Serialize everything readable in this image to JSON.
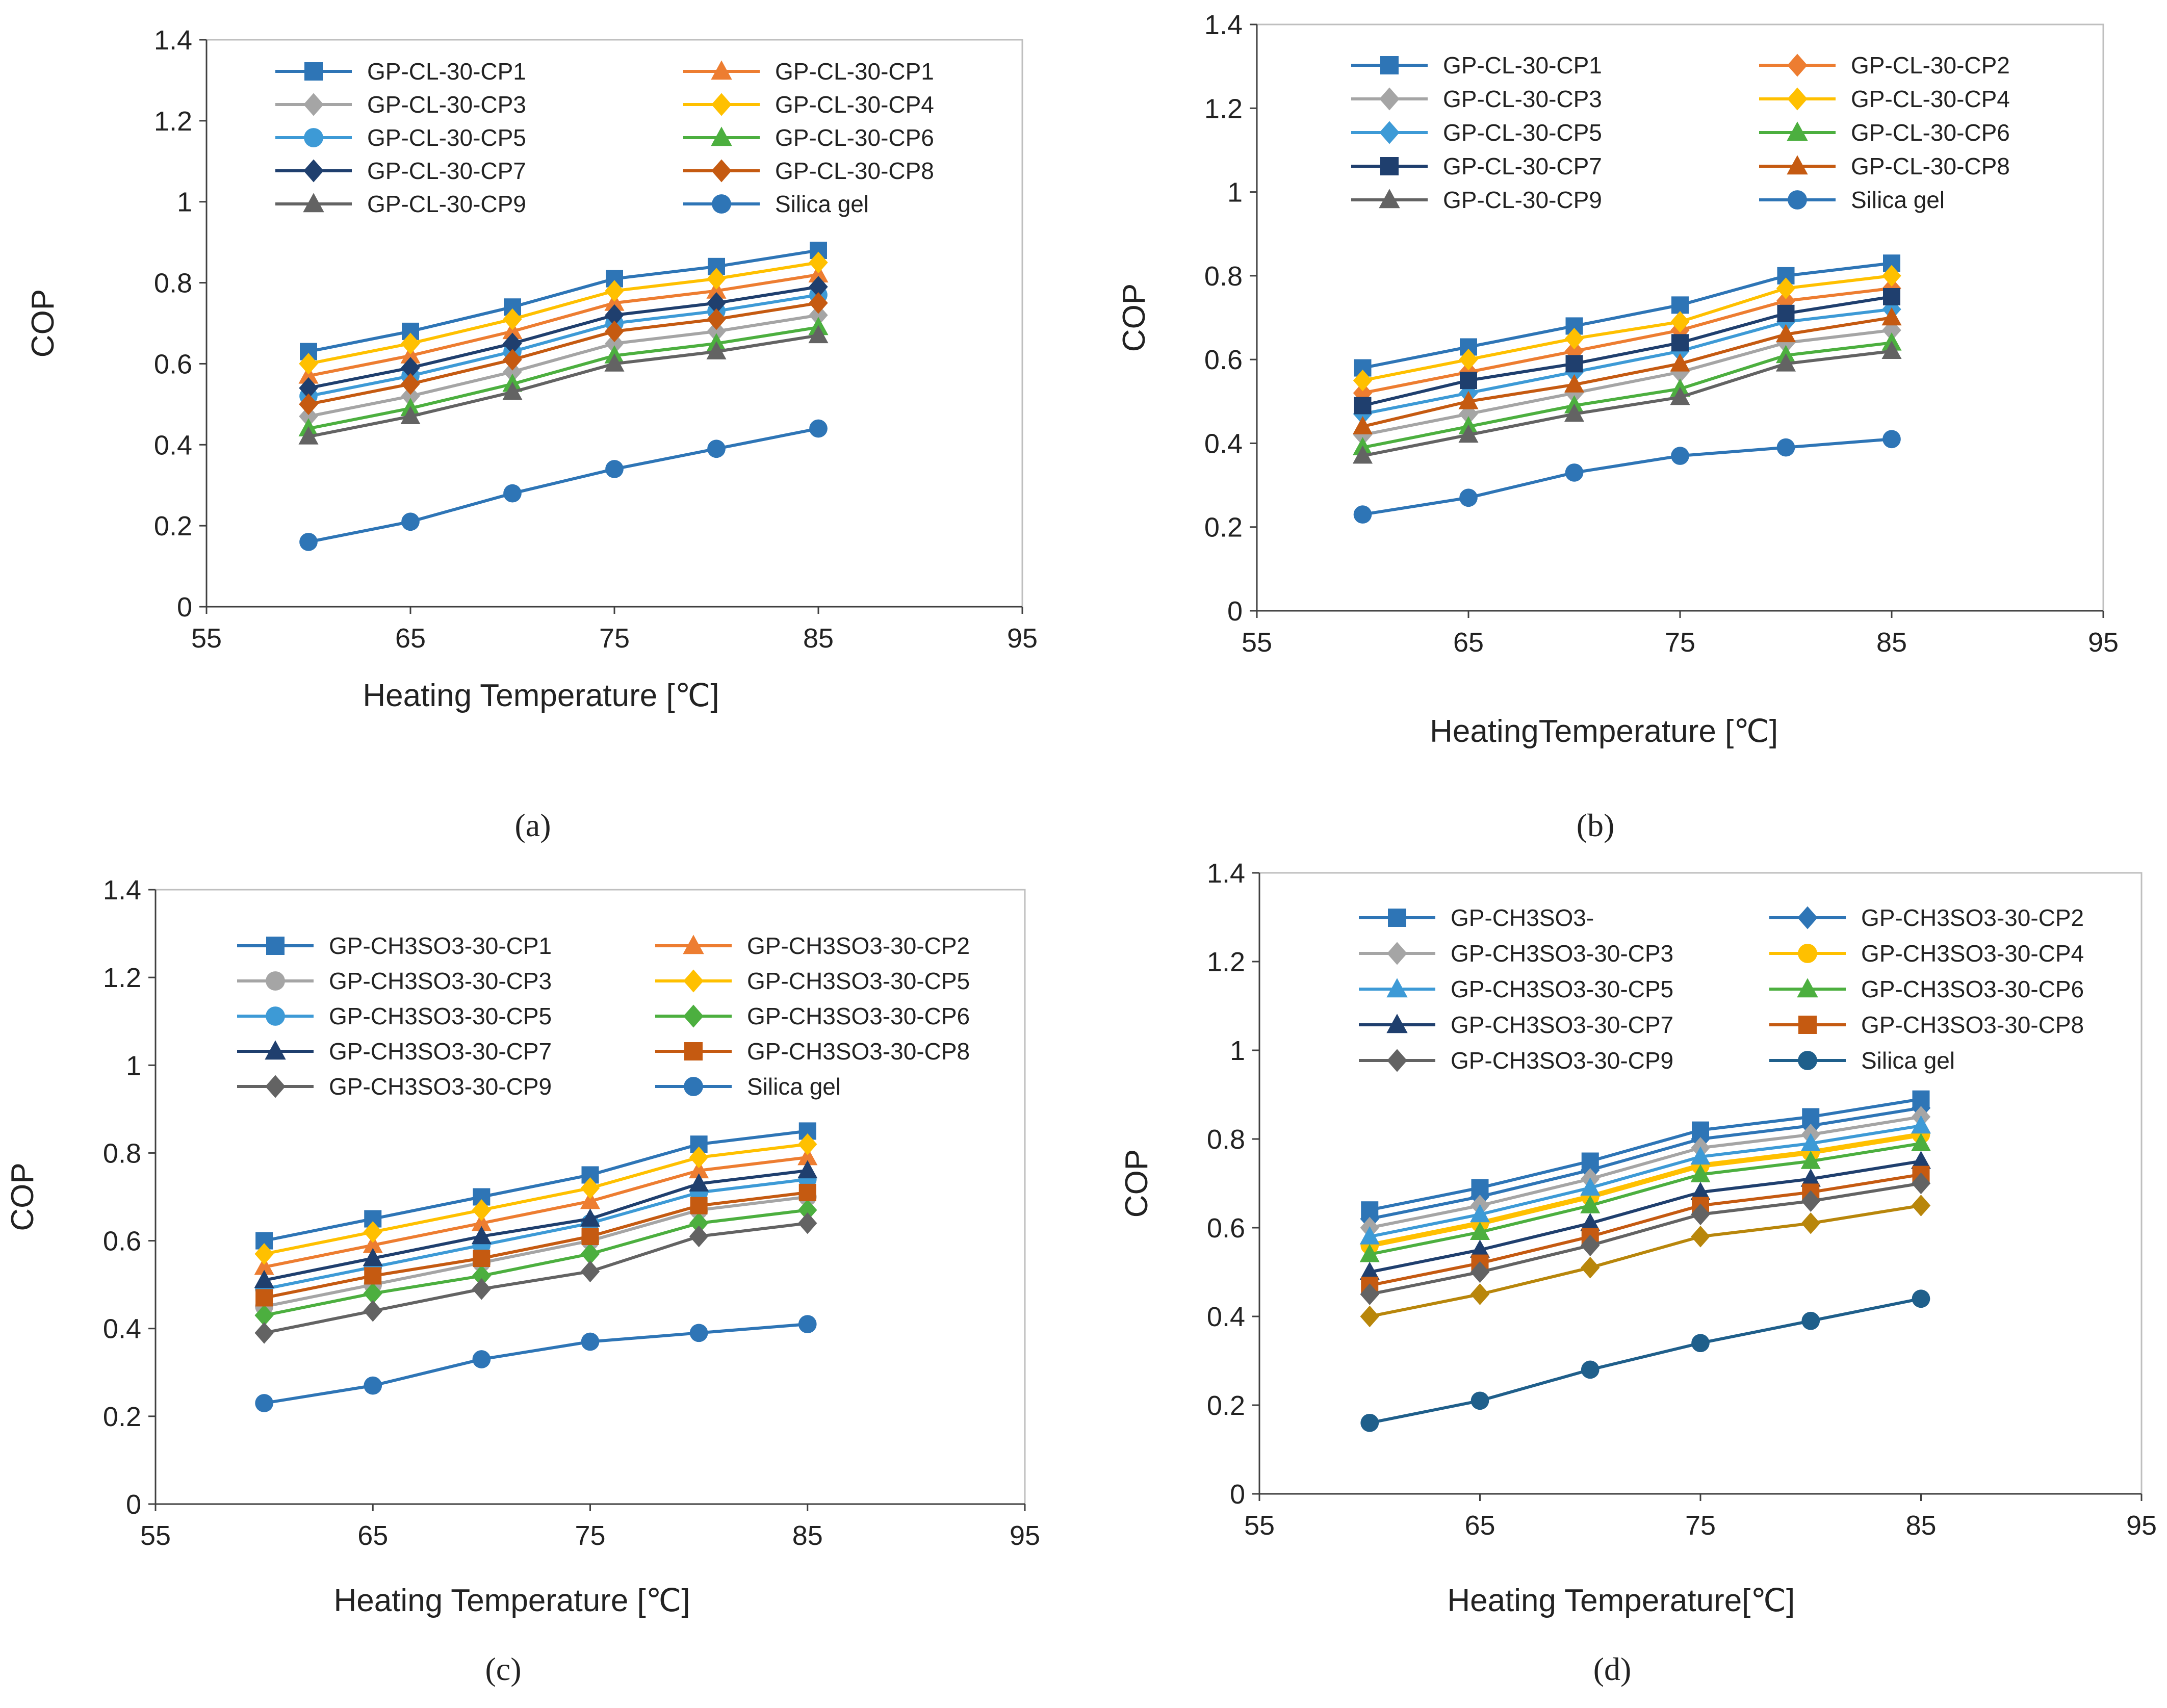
{
  "chart_data": [
    {
      "type": "line",
      "panel_label": "(a)",
      "xlabel": "Heating Temperature [℃]",
      "ylabel": "COP",
      "xlim": [
        55,
        95
      ],
      "ylim": [
        0,
        1.4
      ],
      "xticks": [
        "55",
        "65",
        "75",
        "85",
        "95"
      ],
      "yticks": [
        "0",
        "0.2",
        "0.4",
        "0.6",
        "0.8",
        "1",
        "1.2",
        "1.4"
      ],
      "x": [
        60,
        65,
        70,
        75,
        80,
        85
      ],
      "legend_position": "top-left",
      "series": [
        {
          "name": "GP-CL-30-CP1",
          "color": "#2e75b6",
          "marker": "square",
          "values": [
            0.63,
            0.68,
            0.74,
            0.81,
            0.84,
            0.88
          ]
        },
        {
          "name": "GP-CL-30-CP1",
          "color": "#ed7d31",
          "marker": "triangle",
          "values": [
            0.57,
            0.62,
            0.68,
            0.75,
            0.78,
            0.82
          ]
        },
        {
          "name": "GP-CL-30-CP3",
          "color": "#a5a5a5",
          "marker": "diamond",
          "values": [
            0.47,
            0.52,
            0.58,
            0.65,
            0.68,
            0.72
          ]
        },
        {
          "name": "GP-CL-30-CP4",
          "color": "#ffc000",
          "marker": "diamond",
          "values": [
            0.6,
            0.65,
            0.71,
            0.78,
            0.81,
            0.85
          ]
        },
        {
          "name": "GP-CL-30-CP5",
          "color": "#3d9ad6",
          "marker": "circle",
          "values": [
            0.52,
            0.57,
            0.63,
            0.7,
            0.73,
            0.77
          ]
        },
        {
          "name": "GP-CL-30-CP6",
          "color": "#4caf3f",
          "marker": "triangle",
          "values": [
            0.44,
            0.49,
            0.55,
            0.62,
            0.65,
            0.69
          ]
        },
        {
          "name": "GP-CL-30-CP7",
          "color": "#1f3f6e",
          "marker": "diamond",
          "values": [
            0.54,
            0.59,
            0.65,
            0.72,
            0.75,
            0.79
          ]
        },
        {
          "name": "GP-CL-30-CP8",
          "color": "#c55a11",
          "marker": "diamond",
          "values": [
            0.5,
            0.55,
            0.61,
            0.68,
            0.71,
            0.75
          ]
        },
        {
          "name": "GP-CL-30-CP9",
          "color": "#636363",
          "marker": "triangle",
          "values": [
            0.42,
            0.47,
            0.53,
            0.6,
            0.63,
            0.67
          ]
        },
        {
          "name": "Silica gel",
          "color": "#2e75b6",
          "marker": "circle",
          "values": [
            0.16,
            0.21,
            0.28,
            0.34,
            0.39,
            0.44
          ]
        }
      ]
    },
    {
      "type": "line",
      "panel_label": "(b)",
      "xlabel": "HeatingTemperature [℃]",
      "ylabel": "COP",
      "xlim": [
        55,
        95
      ],
      "ylim": [
        0,
        1.4
      ],
      "xticks": [
        "55",
        "65",
        "75",
        "85",
        "95"
      ],
      "yticks": [
        "0",
        "0.2",
        "0.4",
        "0.6",
        "0.8",
        "1",
        "1.2",
        "1.4"
      ],
      "x": [
        60,
        65,
        70,
        75,
        80,
        85
      ],
      "legend_position": "top-left",
      "series": [
        {
          "name": "GP-CL-30-CP1",
          "color": "#2e75b6",
          "marker": "square",
          "values": [
            0.58,
            0.63,
            0.68,
            0.73,
            0.8,
            0.83
          ]
        },
        {
          "name": "GP-CL-30-CP2",
          "color": "#ed7d31",
          "marker": "diamond",
          "values": [
            0.52,
            0.57,
            0.62,
            0.67,
            0.74,
            0.77
          ]
        },
        {
          "name": "GP-CL-30-CP3",
          "color": "#a5a5a5",
          "marker": "diamond",
          "values": [
            0.42,
            0.47,
            0.52,
            0.57,
            0.64,
            0.67
          ]
        },
        {
          "name": "GP-CL-30-CP4",
          "color": "#ffc000",
          "marker": "diamond",
          "values": [
            0.55,
            0.6,
            0.65,
            0.69,
            0.77,
            0.8
          ]
        },
        {
          "name": "GP-CL-30-CP5",
          "color": "#3d9ad6",
          "marker": "diamond",
          "values": [
            0.47,
            0.52,
            0.57,
            0.62,
            0.69,
            0.72
          ]
        },
        {
          "name": "GP-CL-30-CP6",
          "color": "#4caf3f",
          "marker": "triangle",
          "values": [
            0.39,
            0.44,
            0.49,
            0.53,
            0.61,
            0.64
          ]
        },
        {
          "name": "GP-CL-30-CP7",
          "color": "#1f3f6e",
          "marker": "square",
          "values": [
            0.49,
            0.55,
            0.59,
            0.64,
            0.71,
            0.75
          ]
        },
        {
          "name": "GP-CL-30-CP8",
          "color": "#c55a11",
          "marker": "triangle",
          "values": [
            0.44,
            0.5,
            0.54,
            0.59,
            0.66,
            0.7
          ]
        },
        {
          "name": "GP-CL-30-CP9",
          "color": "#636363",
          "marker": "triangle",
          "values": [
            0.37,
            0.42,
            0.47,
            0.51,
            0.59,
            0.62
          ]
        },
        {
          "name": "Silica gel",
          "color": "#2e75b6",
          "marker": "circle",
          "values": [
            0.23,
            0.27,
            0.33,
            0.37,
            0.39,
            0.41
          ]
        }
      ]
    },
    {
      "type": "line",
      "panel_label": "(c)",
      "xlabel": "Heating Temperature [℃]",
      "ylabel": "COP",
      "xlim": [
        55,
        95
      ],
      "ylim": [
        0,
        1.4
      ],
      "xticks": [
        "55",
        "65",
        "75",
        "85",
        "95"
      ],
      "yticks": [
        "0",
        "0.2",
        "0.4",
        "0.6",
        "0.8",
        "1",
        "1.2",
        "1.4"
      ],
      "x": [
        60,
        65,
        70,
        75,
        80,
        85
      ],
      "legend_position": "top-left",
      "series": [
        {
          "name": "GP-CH3SO3-30-CP1",
          "color": "#2e75b6",
          "marker": "square",
          "values": [
            0.6,
            0.65,
            0.7,
            0.75,
            0.82,
            0.85
          ]
        },
        {
          "name": "GP-CH3SO3-30-CP2",
          "color": "#ed7d31",
          "marker": "triangle",
          "values": [
            0.54,
            0.59,
            0.64,
            0.69,
            0.76,
            0.79
          ]
        },
        {
          "name": "GP-CH3SO3-30-CP3",
          "color": "#a5a5a5",
          "marker": "circle",
          "values": [
            0.45,
            0.5,
            0.55,
            0.6,
            0.67,
            0.7
          ]
        },
        {
          "name": "GP-CH3SO3-30-CP5",
          "color": "#ffc000",
          "marker": "diamond",
          "values": [
            0.57,
            0.62,
            0.67,
            0.72,
            0.79,
            0.82
          ]
        },
        {
          "name": "GP-CH3SO3-30-CP5",
          "color": "#3d9ad6",
          "marker": "circle",
          "values": [
            0.49,
            0.54,
            0.59,
            0.64,
            0.71,
            0.74
          ]
        },
        {
          "name": "GP-CH3SO3-30-CP6",
          "color": "#4caf3f",
          "marker": "diamond",
          "values": [
            0.43,
            0.48,
            0.52,
            0.57,
            0.64,
            0.67
          ]
        },
        {
          "name": "GP-CH3SO3-30-CP7",
          "color": "#1f3f6e",
          "marker": "triangle",
          "values": [
            0.51,
            0.56,
            0.61,
            0.65,
            0.73,
            0.76
          ]
        },
        {
          "name": "GP-CH3SO3-30-CP8",
          "color": "#c55a11",
          "marker": "square",
          "values": [
            0.47,
            0.52,
            0.56,
            0.61,
            0.68,
            0.71
          ]
        },
        {
          "name": "GP-CH3SO3-30-CP9",
          "color": "#636363",
          "marker": "diamond",
          "values": [
            0.39,
            0.44,
            0.49,
            0.53,
            0.61,
            0.64
          ]
        },
        {
          "name": "Silica gel",
          "color": "#2e75b6",
          "marker": "circle",
          "values": [
            0.23,
            0.27,
            0.33,
            0.37,
            0.39,
            0.41
          ]
        }
      ]
    },
    {
      "type": "line",
      "panel_label": "(d)",
      "xlabel": "Heating Temperature[℃]",
      "ylabel": "COP",
      "xlim": [
        55,
        95
      ],
      "ylim": [
        0,
        1.4
      ],
      "xticks": [
        "55",
        "65",
        "75",
        "85",
        "95"
      ],
      "yticks": [
        "0",
        "0.2",
        "0.4",
        "0.6",
        "0.8",
        "1",
        "1.2",
        "1.4"
      ],
      "x": [
        60,
        65,
        70,
        75,
        80,
        85
      ],
      "legend_position": "top-left",
      "series": [
        {
          "name": "GP-CH3SO3-",
          "color": "#2e75b6",
          "marker": "square",
          "values": [
            0.64,
            0.69,
            0.75,
            0.82,
            0.85,
            0.89
          ]
        },
        {
          "name": "GP-CH3SO3-30-CP2",
          "color": "#2e75b6",
          "marker": "diamond",
          "values": [
            0.62,
            0.67,
            0.73,
            0.8,
            0.83,
            0.87
          ]
        },
        {
          "name": "GP-CH3SO3-30-CP3",
          "color": "#a5a5a5",
          "marker": "diamond",
          "values": [
            0.6,
            0.65,
            0.71,
            0.78,
            0.81,
            0.85
          ]
        },
        {
          "name": "GP-CH3SO3-30-CP4",
          "color": "#ffc000",
          "marker": "circle",
          "values": [
            0.56,
            0.61,
            0.67,
            0.74,
            0.77,
            0.81
          ]
        },
        {
          "name": "GP-CH3SO3-30-CP5",
          "color": "#3d9ad6",
          "marker": "triangle",
          "values": [
            0.58,
            0.63,
            0.69,
            0.76,
            0.79,
            0.83
          ]
        },
        {
          "name": "GP-CH3SO3-30-CP6",
          "color": "#4caf3f",
          "marker": "triangle",
          "values": [
            0.54,
            0.59,
            0.65,
            0.72,
            0.75,
            0.79
          ]
        },
        {
          "name": "GP-CH3SO3-30-CP7",
          "color": "#1f3f6e",
          "marker": "triangle",
          "values": [
            0.5,
            0.55,
            0.61,
            0.68,
            0.71,
            0.75
          ]
        },
        {
          "name": "GP-CH3SO3-30-CP8",
          "color": "#c55a11",
          "marker": "square",
          "values": [
            0.47,
            0.52,
            0.58,
            0.65,
            0.68,
            0.72
          ]
        },
        {
          "name": "GP-CH3SO3-30-CP9",
          "color": "#636363",
          "marker": "diamond",
          "values": [
            0.45,
            0.5,
            0.56,
            0.63,
            0.66,
            0.7
          ]
        },
        {
          "name": "Silica gel",
          "color": "#1f5f8b",
          "marker": "circle",
          "values": [
            0.16,
            0.21,
            0.28,
            0.34,
            0.39,
            0.44
          ]
        },
        {
          "name": "",
          "color": "#b8860b",
          "marker": "diamond",
          "values": [
            0.4,
            0.45,
            0.51,
            0.58,
            0.61,
            0.65
          ]
        }
      ]
    }
  ]
}
